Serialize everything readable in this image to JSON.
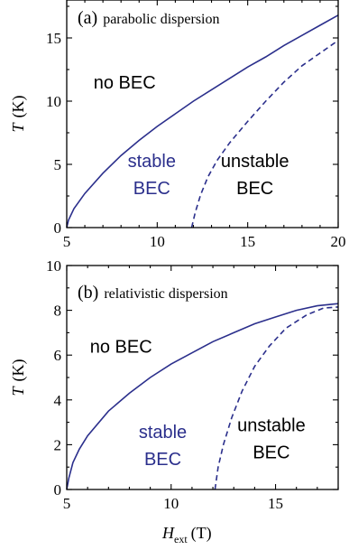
{
  "chart_data": [
    {
      "type": "line",
      "panel_label": "(a)",
      "panel_title": "parabolic dispersion",
      "xlabel": "",
      "ylabel": "T (K)",
      "xlim": [
        5,
        20
      ],
      "ylim": [
        0,
        18
      ],
      "x_ticks": [
        5,
        10,
        15,
        20
      ],
      "y_ticks": [
        0,
        5,
        10,
        15
      ],
      "regions": [
        {
          "text": [
            "no BEC"
          ],
          "x": 8.2,
          "y": 11.0,
          "color": "#000000"
        },
        {
          "text": [
            "stable",
            "BEC"
          ],
          "x": 9.7,
          "y": 4.8,
          "color": "#2b2f8c"
        },
        {
          "text": [
            "unstable",
            "BEC"
          ],
          "x": 15.4,
          "y": 4.8,
          "color": "#000000"
        }
      ],
      "series": [
        {
          "style": "solid",
          "color": "#2b2f8c",
          "points": [
            [
              5.0,
              0
            ],
            [
              5.1,
              0.6
            ],
            [
              5.4,
              1.5
            ],
            [
              6,
              2.7
            ],
            [
              7,
              4.3
            ],
            [
              8,
              5.7
            ],
            [
              9,
              6.9
            ],
            [
              10,
              8.0
            ],
            [
              11,
              9.0
            ],
            [
              12,
              10.0
            ],
            [
              13,
              10.9
            ],
            [
              14,
              11.8
            ],
            [
              15,
              12.7
            ],
            [
              16,
              13.5
            ],
            [
              17,
              14.4
            ],
            [
              18,
              15.2
            ],
            [
              19,
              16.0
            ],
            [
              20,
              16.8
            ]
          ]
        },
        {
          "style": "dashed",
          "color": "#2b2f8c",
          "points": [
            [
              11.9,
              0
            ],
            [
              12.1,
              1.2
            ],
            [
              12.4,
              2.6
            ],
            [
              12.8,
              4.0
            ],
            [
              13.3,
              5.3
            ],
            [
              14,
              6.7
            ],
            [
              15,
              8.4
            ],
            [
              16,
              10.0
            ],
            [
              17,
              11.5
            ],
            [
              18,
              12.8
            ],
            [
              19,
              13.8
            ],
            [
              20,
              14.8
            ]
          ]
        }
      ]
    },
    {
      "type": "line",
      "panel_label": "(b)",
      "panel_title": "relativistic dispersion",
      "xlabel": "H_ext (T)",
      "xlabel_main": "H",
      "xlabel_sub": "ext",
      "xlabel_unit": "(T)",
      "ylabel": "T (K)",
      "xlim": [
        5,
        18
      ],
      "ylim": [
        0,
        10
      ],
      "x_ticks": [
        5,
        10,
        15
      ],
      "y_ticks": [
        0,
        2,
        4,
        6,
        8,
        10
      ],
      "regions": [
        {
          "text": [
            "no BEC"
          ],
          "x": 7.6,
          "y": 6.1,
          "color": "#000000"
        },
        {
          "text": [
            "stable",
            "BEC"
          ],
          "x": 9.6,
          "y": 2.3,
          "color": "#2b2f8c"
        },
        {
          "text": [
            "unstable",
            "BEC"
          ],
          "x": 14.8,
          "y": 2.6,
          "color": "#000000"
        }
      ],
      "series": [
        {
          "style": "solid",
          "color": "#2b2f8c",
          "points": [
            [
              5.0,
              0
            ],
            [
              5.1,
              0.5
            ],
            [
              5.3,
              1.2
            ],
            [
              5.6,
              1.8
            ],
            [
              6,
              2.4
            ],
            [
              7,
              3.5
            ],
            [
              8,
              4.3
            ],
            [
              9,
              5.0
            ],
            [
              10,
              5.6
            ],
            [
              11,
              6.1
            ],
            [
              12,
              6.6
            ],
            [
              13,
              7.0
            ],
            [
              14,
              7.4
            ],
            [
              15,
              7.7
            ],
            [
              16,
              8.0
            ],
            [
              17,
              8.2
            ],
            [
              18,
              8.3
            ]
          ]
        },
        {
          "style": "dashed",
          "color": "#2b2f8c",
          "points": [
            [
              12.1,
              0
            ],
            [
              12.25,
              1.0
            ],
            [
              12.5,
              2.0
            ],
            [
              12.9,
              3.2
            ],
            [
              13.4,
              4.4
            ],
            [
              14,
              5.5
            ],
            [
              14.7,
              6.4
            ],
            [
              15.5,
              7.2
            ],
            [
              16.5,
              7.8
            ],
            [
              17.3,
              8.1
            ],
            [
              18,
              8.15
            ]
          ]
        }
      ]
    }
  ]
}
